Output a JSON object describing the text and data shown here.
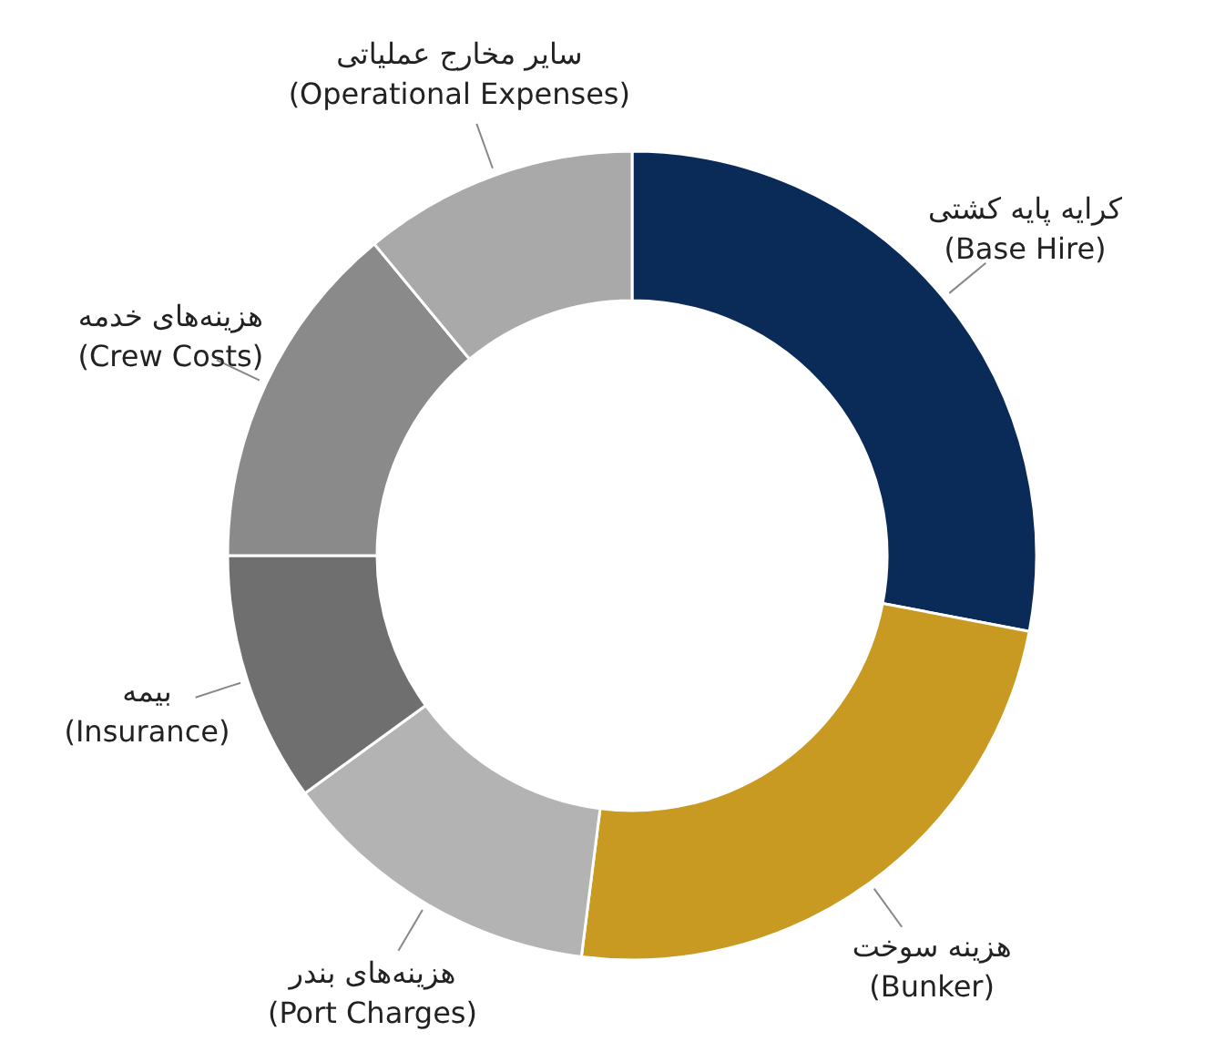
{
  "chart_data": {
    "type": "donut",
    "categories": [
      "کرایه پایه کشتی\n(Base Hire)",
      "هزینه سوخت\n(Bunker)",
      "هزینه‌های بندر\n(Port Charges)",
      "بیمه\n(Insurance)",
      "هزینه‌های خدمه\n(Crew Costs)",
      "سایر مخارج عملیاتی\n(Operational Expenses)"
    ],
    "values": [
      28,
      24,
      13,
      10,
      14,
      11
    ],
    "colors": [
      "#0a2b57",
      "#c99a22",
      "#b3b3b3",
      "#6f6f6f",
      "#8a8a8a",
      "#a9a9a9"
    ]
  }
}
